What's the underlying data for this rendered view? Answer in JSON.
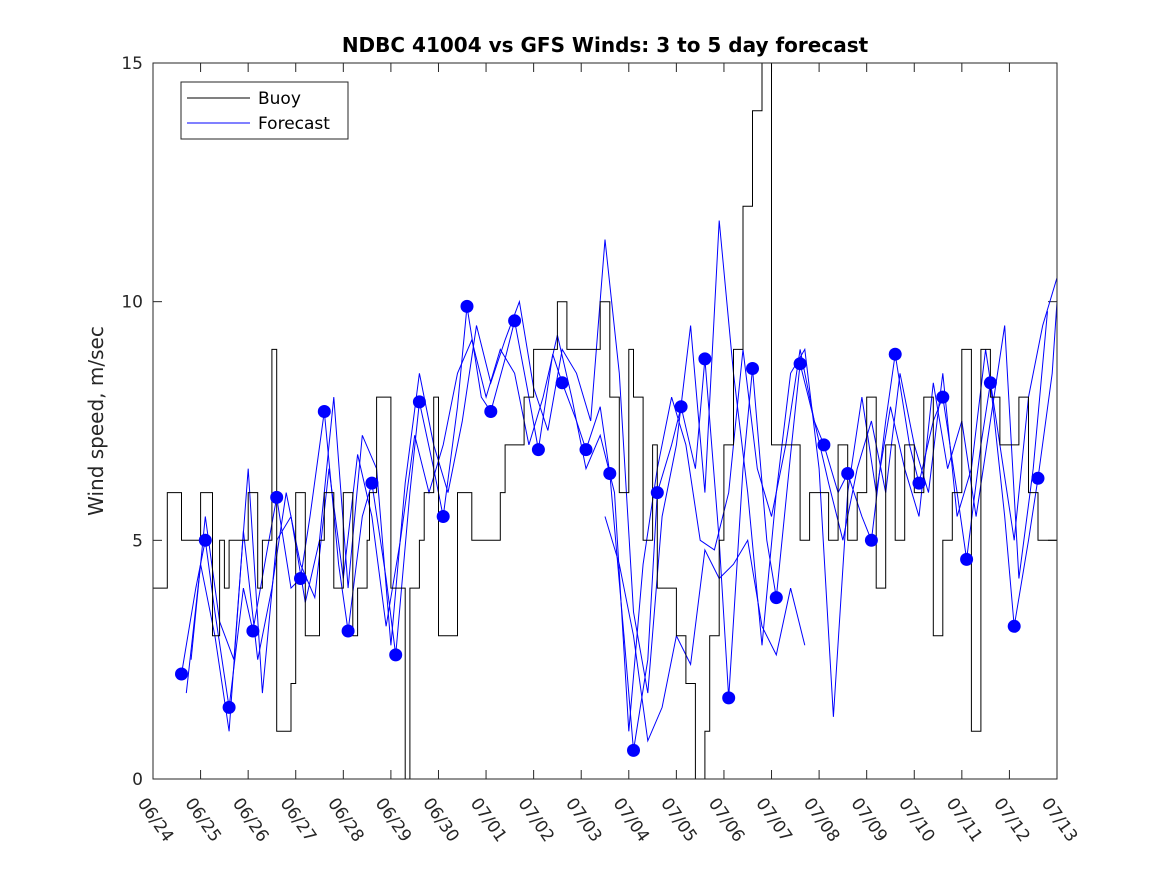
{
  "chart_data": {
    "type": "line",
    "title": "NDBC 41004 vs GFS Winds: 3 to 5 day forecast",
    "xlabel": "",
    "ylabel": "Wind speed, m/sec",
    "xlim": [
      "06/24",
      "07/13"
    ],
    "ylim": [
      0,
      15
    ],
    "x_tick_labels": [
      "06/24",
      "06/25",
      "06/26",
      "06/27",
      "06/28",
      "06/29",
      "06/30",
      "07/01",
      "07/02",
      "07/03",
      "07/04",
      "07/05",
      "07/06",
      "07/07",
      "07/08",
      "07/09",
      "07/10",
      "07/11",
      "07/12",
      "07/13"
    ],
    "y_ticks": [
      0,
      5,
      10,
      15
    ],
    "grid": false,
    "legend": {
      "position": "top-left",
      "entries": [
        {
          "label": "Buoy",
          "color": "#000000"
        },
        {
          "label": "Forecast",
          "color": "#0000ff"
        }
      ]
    },
    "series": [
      {
        "name": "Buoy",
        "color": "#000000",
        "style": "stepped-line",
        "x_days_since_0624": [
          0.0,
          0.3,
          0.6,
          0.7,
          1.0,
          1.25,
          1.4,
          1.5,
          1.6,
          1.9,
          2.0,
          2.2,
          2.3,
          2.5,
          2.6,
          2.9,
          3.0,
          3.2,
          3.5,
          3.6,
          3.8,
          4.0,
          4.2,
          4.3,
          4.5,
          4.55,
          4.7,
          5.0,
          5.3,
          5.4,
          5.5,
          5.6,
          5.7,
          5.9,
          6.0,
          6.2,
          6.4,
          6.7,
          7.0,
          7.3,
          7.4,
          7.6,
          7.8,
          8.0,
          8.2,
          8.5,
          8.7,
          9.0,
          9.2,
          9.4,
          9.6,
          9.8,
          10.0,
          10.1,
          10.3,
          10.5,
          10.6,
          10.8,
          11.0,
          11.2,
          11.4,
          11.6,
          11.7,
          11.9,
          12.0,
          12.2,
          12.4,
          12.6,
          12.8,
          13.0,
          13.2,
          13.4,
          13.6,
          13.8,
          14.0,
          14.2,
          14.4,
          14.6,
          14.8,
          15.0,
          15.2,
          15.4,
          15.6,
          15.8,
          16.0,
          16.2,
          16.4,
          16.6,
          16.8,
          17.0,
          17.2,
          17.4,
          17.6,
          17.8,
          18.0,
          18.2,
          18.4,
          18.6,
          18.8,
          19.0
        ],
        "y": [
          4,
          6,
          5,
          5,
          6,
          3,
          5,
          4,
          5,
          5,
          6,
          4,
          5,
          9,
          1,
          2,
          6,
          3,
          5,
          6,
          4,
          6,
          3,
          4,
          5,
          6,
          8,
          4,
          0,
          4,
          4,
          5,
          6,
          8,
          3,
          3,
          6,
          5,
          5,
          6,
          7,
          7,
          8,
          9,
          9,
          10,
          9,
          9,
          9,
          10,
          8,
          6,
          9,
          8,
          5,
          7,
          4,
          4,
          3,
          2,
          0,
          1,
          3,
          5,
          7,
          9,
          12,
          14,
          15,
          7,
          7,
          7,
          5,
          6,
          6,
          5,
          7,
          5,
          6,
          8,
          4,
          7,
          5,
          7,
          6,
          8,
          3,
          5,
          6,
          9,
          1,
          9,
          8,
          7,
          7,
          8,
          6,
          5,
          5,
          5
        ]
      },
      {
        "name": "Forecast",
        "color": "#0000ff",
        "style": "line",
        "markers": {
          "x_days_since_0624": [
            0.6,
            1.1,
            1.6,
            2.1,
            2.6,
            3.1,
            3.6,
            4.1,
            4.6,
            5.1,
            5.6,
            6.1,
            6.6,
            7.1,
            7.6,
            8.1,
            8.6,
            9.1,
            9.6,
            10.1,
            10.6,
            11.1,
            11.6,
            12.1,
            12.6,
            13.1,
            13.6,
            14.1,
            14.6,
            15.1,
            15.6,
            16.1,
            16.6,
            17.1,
            17.6,
            18.1,
            18.6
          ],
          "y": [
            2.2,
            5.0,
            1.5,
            3.1,
            5.9,
            4.2,
            7.7,
            3.1,
            6.2,
            2.6,
            7.9,
            5.5,
            9.9,
            7.7,
            9.6,
            6.9,
            8.3,
            6.9,
            6.4,
            0.6,
            6.0,
            7.8,
            8.8,
            1.7,
            8.6,
            3.8,
            8.7,
            7.0,
            6.4,
            5.0,
            8.9,
            6.2,
            8.0,
            4.6,
            8.3,
            3.2,
            6.3
          ]
        },
        "traces": [
          {
            "x_days_since_0624": [
              0.6,
              0.9,
              1.1,
              1.3,
              1.6,
              1.9,
              2.1,
              2.4,
              2.6,
              2.9,
              3.1,
              3.3,
              3.6,
              3.9,
              4.1,
              4.4,
              4.6,
              4.9,
              5.1,
              5.4,
              5.6,
              5.9,
              6.1,
              6.4,
              6.6,
              6.9,
              7.1,
              7.4,
              7.6,
              7.9,
              8.1,
              8.4,
              8.6,
              8.9,
              9.1,
              9.4,
              9.6,
              9.9,
              10.1,
              10.4,
              10.6,
              10.9,
              11.1,
              11.4,
              11.6,
              11.9,
              12.1,
              12.4,
              12.6,
              12.9,
              13.1,
              13.4,
              13.6,
              13.9,
              14.1,
              14.4,
              14.6,
              14.9,
              15.1,
              15.4,
              15.6,
              15.9,
              16.1,
              16.4,
              16.6,
              16.9,
              17.1,
              17.4,
              17.6,
              17.9,
              18.1,
              18.4,
              18.6,
              18.9,
              19.0
            ],
            "y": [
              2.2,
              4.0,
              5.0,
              3.5,
              1.5,
              4.0,
              3.1,
              4.8,
              5.9,
              4.0,
              4.2,
              5.5,
              7.7,
              4.5,
              3.1,
              5.5,
              6.2,
              4.2,
              2.6,
              6.0,
              7.9,
              6.5,
              5.5,
              7.8,
              9.9,
              8.0,
              7.7,
              8.8,
              9.6,
              8.0,
              6.9,
              8.9,
              8.3,
              7.5,
              6.9,
              7.8,
              6.4,
              3.0,
              0.6,
              2.5,
              6.0,
              7.0,
              7.8,
              6.5,
              8.8,
              5.0,
              1.7,
              6.5,
              8.6,
              5.0,
              3.8,
              6.8,
              8.7,
              7.5,
              7.0,
              6.0,
              6.4,
              5.5,
              5.0,
              7.5,
              8.9,
              7.0,
              6.2,
              7.5,
              8.0,
              6.0,
              4.6,
              7.0,
              8.3,
              5.5,
              3.2,
              5.0,
              6.3,
              8.5,
              10.0
            ]
          },
          {
            "x_days_since_0624": [
              0.7,
              1.0,
              1.3,
              1.6,
              1.9,
              2.2,
              2.5,
              2.8,
              3.1,
              3.4,
              3.7,
              4.0,
              4.3,
              4.6,
              4.9,
              5.2,
              5.5,
              5.8,
              6.1,
              6.4,
              6.7,
              7.0,
              7.3,
              7.6,
              7.9,
              8.2,
              8.5,
              8.8,
              9.1,
              9.4,
              9.7,
              10.0,
              10.3,
              10.6,
              10.9,
              11.2,
              11.5,
              11.8,
              12.1,
              12.4,
              12.7,
              13.0,
              13.3,
              13.6,
              13.9,
              14.2,
              14.5,
              14.8,
              15.1,
              15.4,
              15.7,
              16.0,
              16.3,
              16.6,
              16.9,
              17.2,
              17.5,
              17.8,
              18.1,
              18.4,
              18.7,
              19.0
            ],
            "y": [
              1.8,
              4.5,
              3.0,
              1.0,
              5.2,
              2.5,
              4.0,
              6.0,
              4.5,
              3.8,
              6.5,
              4.2,
              6.8,
              5.5,
              3.2,
              5.0,
              7.2,
              6.0,
              7.0,
              8.5,
              9.2,
              8.0,
              9.0,
              8.5,
              7.0,
              8.0,
              9.3,
              8.0,
              6.5,
              7.2,
              6.0,
              1.0,
              4.5,
              6.5,
              8.0,
              7.0,
              5.0,
              4.8,
              6.0,
              9.0,
              6.5,
              5.5,
              7.0,
              9.0,
              7.5,
              6.2,
              5.0,
              6.5,
              7.5,
              6.0,
              8.5,
              7.0,
              6.0,
              8.5,
              5.5,
              6.5,
              9.0,
              7.0,
              5.0,
              8.0,
              9.5,
              10.5
            ]
          },
          {
            "x_days_since_0624": [
              0.8,
              1.1,
              1.4,
              1.7,
              2.0,
              2.3,
              2.6,
              2.9,
              3.2,
              3.5,
              3.8,
              4.1,
              4.4,
              4.7,
              5.0,
              5.3,
              5.6,
              5.9,
              6.2,
              6.5,
              6.8,
              7.1,
              7.4,
              7.7,
              8.0,
              8.3,
              8.6,
              8.9,
              9.2,
              9.5,
              9.8,
              10.1,
              10.4,
              10.7,
              11.0,
              11.3,
              11.6,
              11.9,
              12.2,
              12.5,
              12.8,
              13.1,
              13.4,
              13.7,
              14.0,
              14.3,
              14.6,
              14.9,
              15.2,
              15.5,
              15.8,
              16.1,
              16.4,
              16.7,
              17.0,
              17.3,
              17.6,
              17.9,
              18.2,
              18.5,
              18.8
            ],
            "y": [
              2.5,
              5.5,
              3.3,
              2.5,
              6.5,
              1.8,
              5.0,
              5.5,
              3.7,
              5.0,
              8.0,
              4.0,
              7.2,
              6.5,
              2.8,
              6.2,
              8.5,
              7.0,
              6.0,
              7.5,
              9.5,
              8.3,
              9.2,
              10.0,
              8.2,
              7.3,
              9.0,
              8.5,
              7.5,
              11.3,
              8.5,
              3.5,
              1.8,
              5.5,
              7.0,
              9.5,
              6.0,
              11.7,
              8.5,
              6.0,
              2.8,
              6.0,
              8.5,
              9.0,
              6.5,
              1.3,
              6.0,
              8.0,
              6.0,
              7.8,
              6.5,
              5.5,
              8.3,
              6.5,
              7.5,
              5.5,
              7.5,
              9.5,
              4.2,
              6.5,
              9.8
            ]
          },
          {
            "x_days_since_0624": [
              9.5,
              9.8,
              10.1,
              10.4,
              10.7,
              11.0,
              11.3,
              11.6,
              11.9,
              12.2,
              12.5,
              12.8,
              13.1,
              13.4,
              13.7
            ],
            "y": [
              5.5,
              4.5,
              3.0,
              0.8,
              1.5,
              3.0,
              2.4,
              4.8,
              4.2,
              4.5,
              5.0,
              3.2,
              2.6,
              4.0,
              2.8
            ]
          }
        ]
      }
    ]
  }
}
